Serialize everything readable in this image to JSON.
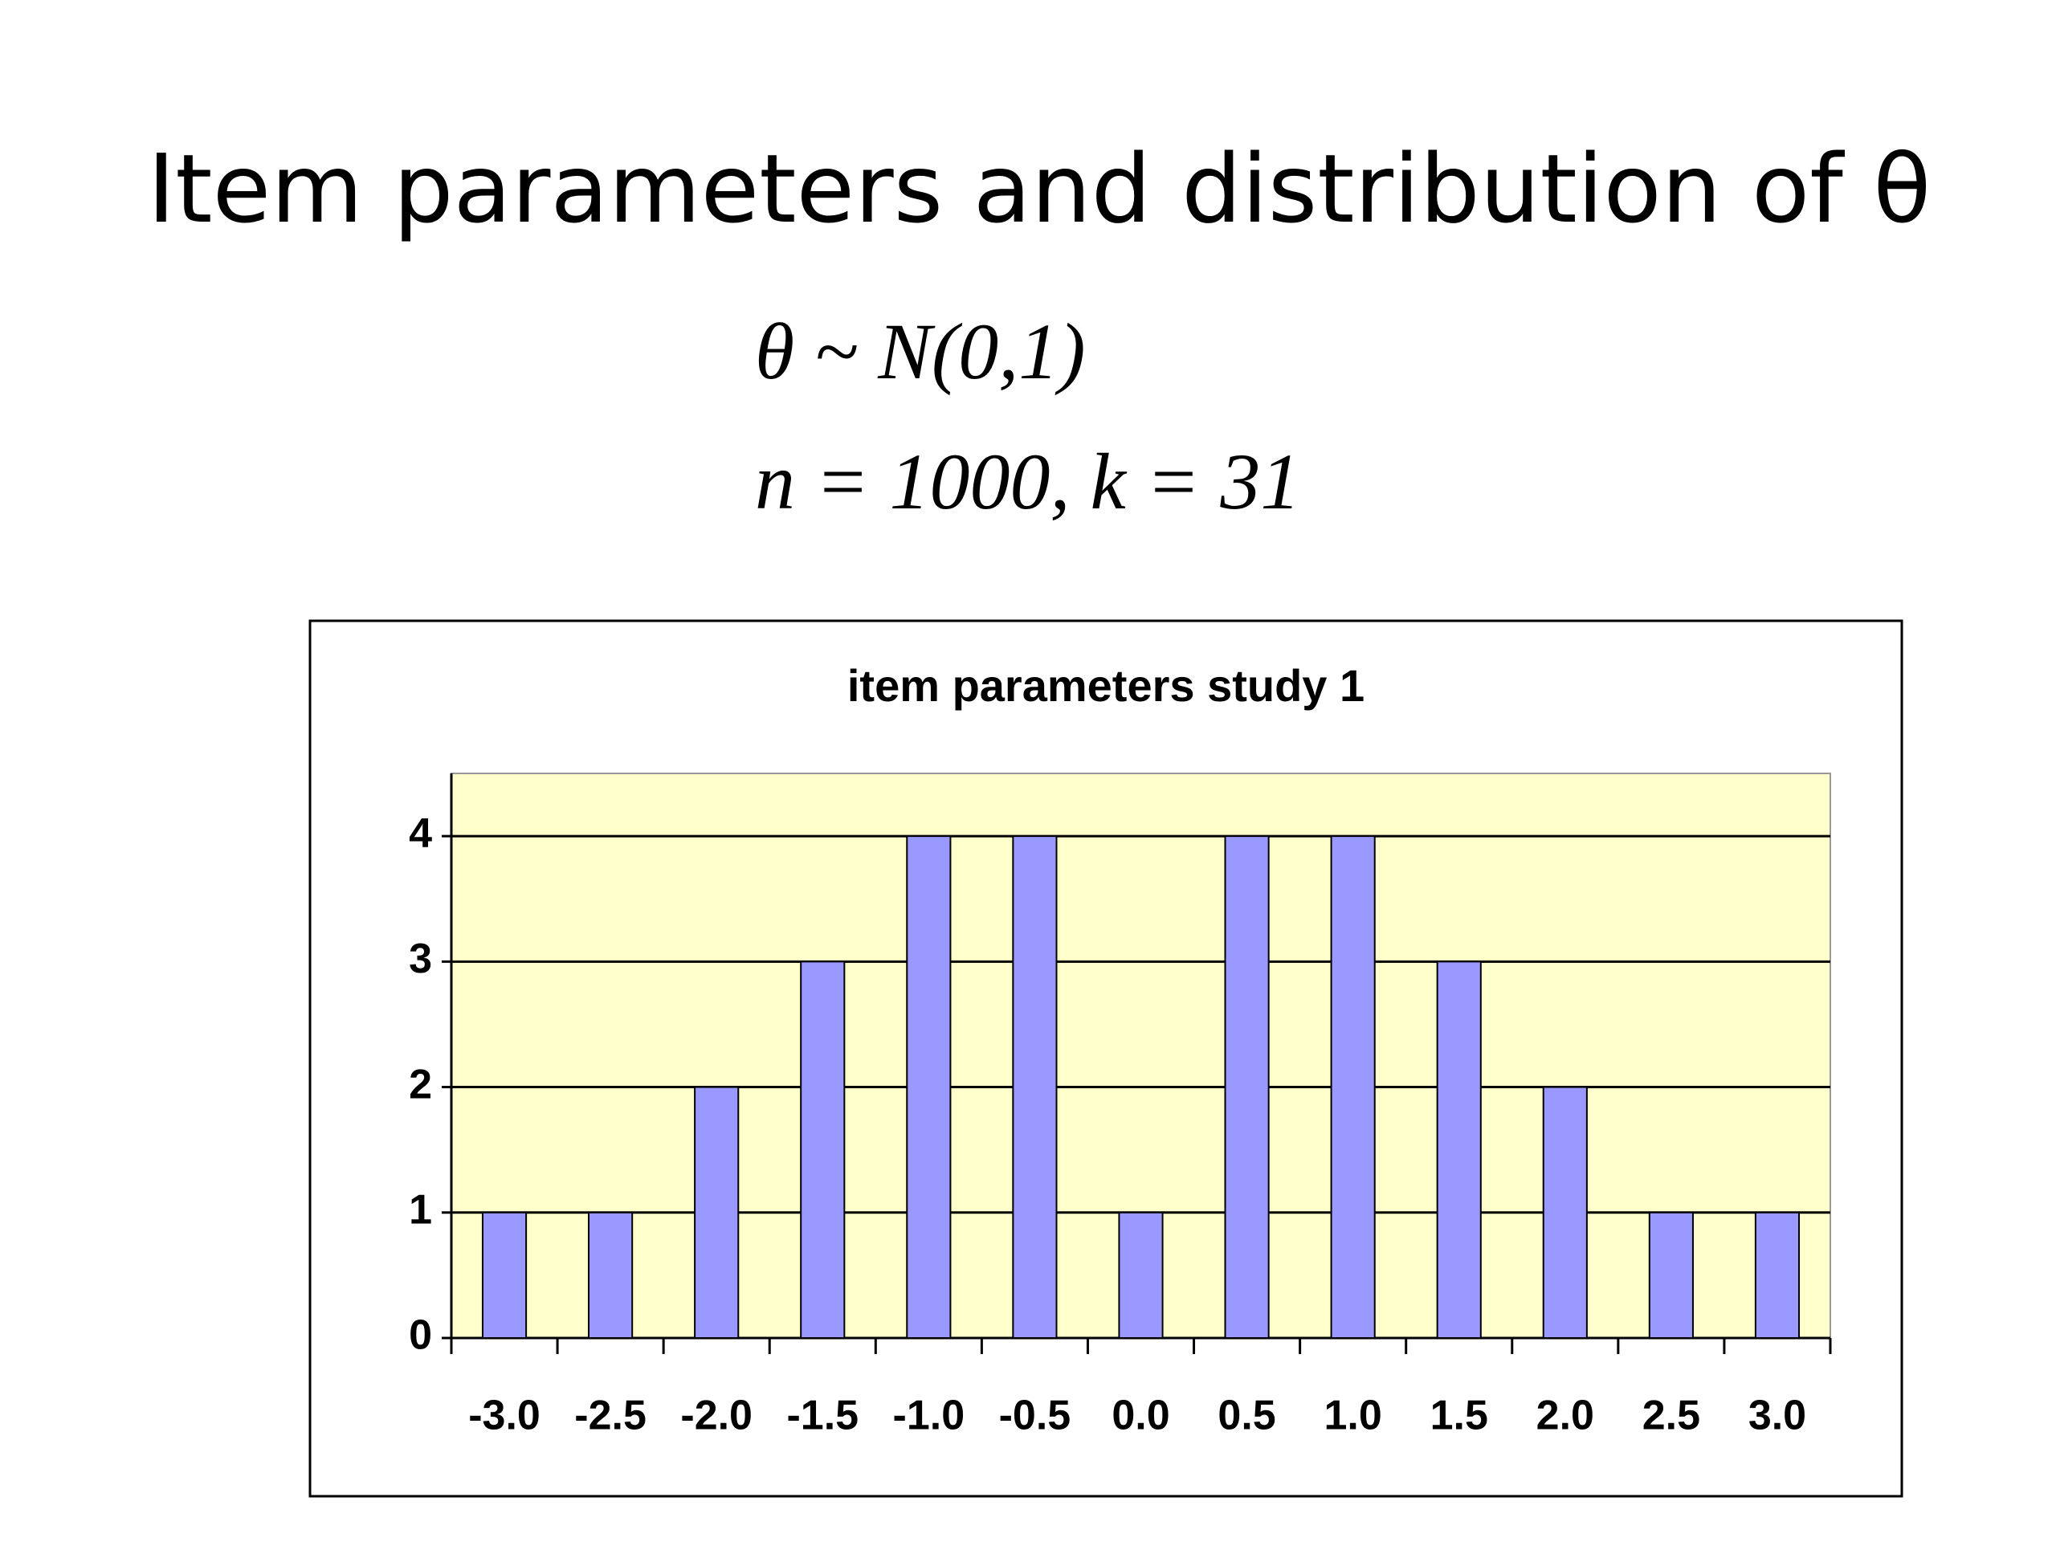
{
  "title": "Item parameters and distribution of θ",
  "formula_lines": [
    "θ ~ N(0,1)",
    "n = 1000,  k = 31"
  ],
  "chart_data": {
    "type": "bar",
    "title": "item parameters study 1",
    "categories": [
      "-3.0",
      "-2.5",
      "-2.0",
      "-1.5",
      "-1.0",
      "-0.5",
      "0.0",
      "0.5",
      "1.0",
      "1.5",
      "2.0",
      "2.5",
      "3.0"
    ],
    "values": [
      1,
      1,
      2,
      3,
      4,
      4,
      1,
      4,
      4,
      3,
      2,
      1,
      1
    ],
    "color": "#9999ff",
    "background": "#ffffcc",
    "ylim": [
      0,
      4.5
    ],
    "yticks": [
      0,
      1,
      2,
      3,
      4
    ],
    "grid": true
  }
}
